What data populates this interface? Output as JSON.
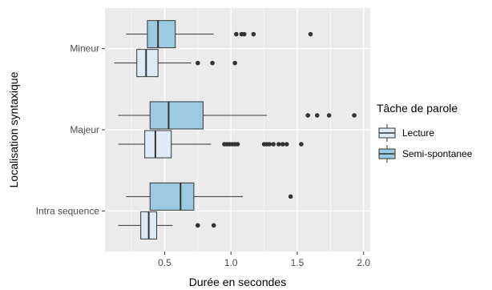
{
  "chart_data": {
    "type": "boxplot",
    "orientation": "horizontal",
    "title": "",
    "xlabel": "Durée en secondes",
    "ylabel": "Localisation syntaxique",
    "xlim": [
      0.05,
      2.05
    ],
    "xticks": [
      0.5,
      1.0,
      1.5,
      2.0
    ],
    "xtick_labels": [
      "0.5",
      "1.0",
      "1.5",
      "2.0"
    ],
    "categories": [
      "Mineur",
      "Majeur",
      "Intra sequence"
    ],
    "grid": true,
    "legend": {
      "title": "Tâche de parole",
      "position": "right"
    },
    "colors": {
      "panel": "#ebebeb",
      "grid": "#ffffff",
      "lecture": "#deebf7",
      "semi": "#9ecae1",
      "stroke": "#333333"
    },
    "series": [
      {
        "name": "Lecture",
        "color": "#deebf7",
        "boxes": [
          {
            "category": "Mineur",
            "whisker_low": 0.12,
            "q1": 0.29,
            "median": 0.36,
            "q3": 0.45,
            "whisker_high": 0.7,
            "outliers": [
              0.75,
              0.86,
              1.03
            ]
          },
          {
            "category": "Majeur",
            "whisker_low": 0.15,
            "q1": 0.35,
            "median": 0.43,
            "q3": 0.55,
            "whisker_high": 0.85,
            "outliers": [
              0.95,
              0.97,
              0.99,
              1.01,
              1.03,
              1.05,
              1.25,
              1.27,
              1.29,
              1.32,
              1.36,
              1.39,
              1.42,
              1.53
            ]
          },
          {
            "category": "Intra sequence",
            "whisker_low": 0.15,
            "q1": 0.32,
            "median": 0.38,
            "q3": 0.44,
            "whisker_high": 0.56,
            "outliers": [
              0.75,
              0.87
            ]
          }
        ]
      },
      {
        "name": "Semi-spontanee",
        "color": "#9ecae1",
        "boxes": [
          {
            "category": "Mineur",
            "whisker_low": 0.21,
            "q1": 0.37,
            "median": 0.45,
            "q3": 0.58,
            "whisker_high": 0.87,
            "outliers": [
              1.04,
              1.08,
              1.1,
              1.17,
              1.6
            ]
          },
          {
            "category": "Majeur",
            "whisker_low": 0.15,
            "q1": 0.39,
            "median": 0.53,
            "q3": 0.79,
            "whisker_high": 1.27,
            "outliers": [
              1.58,
              1.65,
              1.74,
              1.93
            ]
          },
          {
            "category": "Intra sequence",
            "whisker_low": 0.21,
            "q1": 0.39,
            "median": 0.62,
            "q3": 0.72,
            "whisker_high": 1.09,
            "outliers": [
              1.45
            ]
          }
        ]
      }
    ]
  }
}
